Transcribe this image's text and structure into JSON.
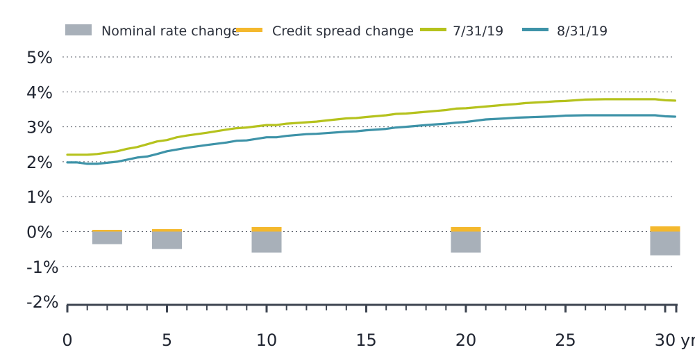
{
  "colors": {
    "nominal": "#a8b0b9",
    "spread": "#f4b82d",
    "line_0731": "#b5c21d",
    "line_0831": "#3e93a8",
    "grid": "#5a5f6a",
    "axis": "#3d4450"
  },
  "chart_data": {
    "type": "line",
    "xlabel": "",
    "ylabel": "",
    "xlim": [
      0,
      30.6
    ],
    "ylim": [
      -2,
      5
    ],
    "yticks": [
      5,
      4,
      3,
      2,
      1,
      0,
      -1,
      -2
    ],
    "ytick_labels": [
      "5%",
      "4%",
      "3%",
      "2%",
      "1%",
      "0%",
      "-1%",
      "-2%"
    ],
    "xticks": [
      0,
      5,
      10,
      15,
      20,
      25,
      30
    ],
    "xtick_labels": [
      "0",
      "5",
      "10",
      "15",
      "20",
      "25",
      "30"
    ],
    "x_unit_label": "yr",
    "grid": "horizontal dotted",
    "legend": {
      "placement": "top",
      "items": [
        {
          "label": "Nominal rate change",
          "kind": "bar",
          "color_key": "nominal"
        },
        {
          "label": "Credit spread change",
          "kind": "dash",
          "color_key": "spread"
        },
        {
          "label": "7/31/19",
          "kind": "line",
          "color_key": "line_0731"
        },
        {
          "label": "8/31/19",
          "kind": "line",
          "color_key": "line_0831"
        }
      ]
    },
    "series": [
      {
        "name": "7/31/19",
        "kind": "line",
        "x": [
          0,
          1,
          1.5,
          2,
          2.5,
          3,
          3.5,
          4,
          4.5,
          5,
          5.5,
          6,
          7,
          8,
          8.5,
          9,
          10,
          10.5,
          11,
          12,
          12.5,
          13,
          14,
          14.5,
          15,
          16,
          16.5,
          17,
          18,
          19,
          19.5,
          20,
          21,
          22,
          22.5,
          23,
          24,
          24.5,
          25,
          25.5,
          26,
          27,
          28,
          29,
          29.5,
          30,
          30.5
        ],
        "y": [
          2.2,
          2.2,
          2.22,
          2.26,
          2.3,
          2.37,
          2.42,
          2.5,
          2.58,
          2.62,
          2.7,
          2.75,
          2.83,
          2.92,
          2.96,
          2.98,
          3.05,
          3.05,
          3.09,
          3.13,
          3.15,
          3.18,
          3.24,
          3.25,
          3.28,
          3.33,
          3.37,
          3.38,
          3.43,
          3.48,
          3.52,
          3.53,
          3.58,
          3.63,
          3.65,
          3.68,
          3.71,
          3.73,
          3.74,
          3.76,
          3.78,
          3.79,
          3.79,
          3.79,
          3.79,
          3.76,
          3.75
        ]
      },
      {
        "name": "8/31/19",
        "kind": "line",
        "x": [
          0,
          0.5,
          1,
          1.5,
          2,
          2.5,
          3,
          3.5,
          4,
          4.5,
          5,
          5.5,
          6,
          7,
          8,
          8.5,
          9,
          10,
          10.5,
          11,
          12,
          12.5,
          13,
          14,
          14.5,
          15,
          16,
          16.5,
          17,
          18,
          19,
          19.5,
          20,
          21,
          22,
          22.5,
          23,
          24,
          24.5,
          25,
          26,
          27,
          28,
          29,
          29.5,
          30,
          30.5
        ],
        "y": [
          1.98,
          1.98,
          1.94,
          1.94,
          1.97,
          2.0,
          2.06,
          2.12,
          2.15,
          2.22,
          2.3,
          2.35,
          2.4,
          2.48,
          2.55,
          2.6,
          2.61,
          2.7,
          2.7,
          2.74,
          2.79,
          2.8,
          2.82,
          2.86,
          2.87,
          2.9,
          2.94,
          2.98,
          3.0,
          3.05,
          3.09,
          3.12,
          3.14,
          3.21,
          3.24,
          3.26,
          3.27,
          3.29,
          3.3,
          3.32,
          3.33,
          3.33,
          3.33,
          3.33,
          3.33,
          3.3,
          3.29
        ]
      }
    ],
    "bars": {
      "x": [
        2,
        5,
        10,
        20,
        30
      ],
      "width_years": 1.5,
      "nominal_rate_change": [
        -0.36,
        -0.5,
        -0.6,
        -0.6,
        -0.68
      ],
      "credit_spread_change": [
        0.05,
        0.07,
        0.13,
        0.13,
        0.15
      ]
    }
  }
}
